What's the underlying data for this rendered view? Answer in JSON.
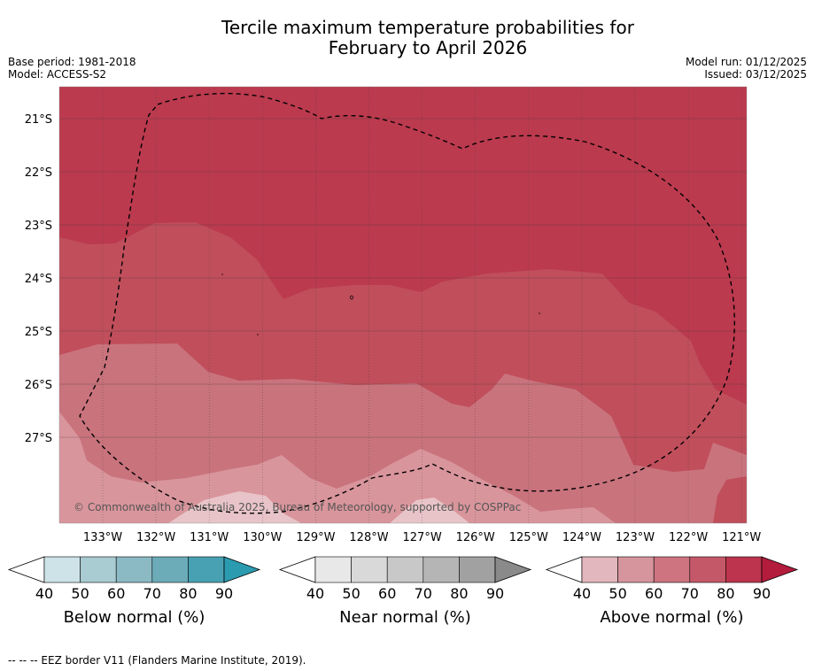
{
  "title_line1": "Tercile maximum temperature probabilities for",
  "title_line2": "February to April 2026",
  "base_period": "Base period: 1981-2018",
  "model": "Model: ACCESS-S2",
  "model_run": "Model run: 01/12/2025",
  "issued": "Issued: 03/12/2025",
  "copyright": "© Commonwealth of Australia 2025, Bureau of Meteorology, supported by COSPPac",
  "lat_labels": [
    "21°S",
    "22°S",
    "23°S",
    "24°S",
    "25°S",
    "26°S",
    "27°S"
  ],
  "lon_labels": [
    "133°W",
    "132°W",
    "131°W",
    "130°W",
    "129°W",
    "128°W",
    "127°W",
    "126°W",
    "125°W",
    "124°W",
    "123°W",
    "122°W",
    "121°W"
  ],
  "colorbars": [
    {
      "label": "Below normal (%)",
      "ticks": [
        "40",
        "50",
        "60",
        "70",
        "80",
        "90"
      ],
      "colors": [
        "#cde3e8",
        "#a9cbd2",
        "#8bb9c4",
        "#6cabb8",
        "#48a1b2",
        "#2b9bb0"
      ]
    },
    {
      "label": "Near normal (%)",
      "ticks": [
        "40",
        "50",
        "60",
        "70",
        "80",
        "90"
      ],
      "colors": [
        "#e8e8e8",
        "#d9d9d9",
        "#c8c8c8",
        "#b5b5b5",
        "#a1a1a1",
        "#8a8a8a"
      ]
    },
    {
      "label": "Above normal (%)",
      "ticks": [
        "40",
        "50",
        "60",
        "70",
        "80",
        "90"
      ],
      "colors": [
        "#e2b7bd",
        "#d6959d",
        "#cd7480",
        "#c45868",
        "#bc344d",
        "#b31c3c"
      ]
    }
  ],
  "footer": "--  --  -- EEZ border V11 (Flanders Marine Institute, 2019).",
  "colors": {
    "above_40": "#d9959c",
    "above_50": "#c9737d",
    "above_60": "#c04e5b",
    "above_70": "#bb3a4e",
    "above_80": "#b8304a",
    "faint": "#e8c4c8"
  }
}
